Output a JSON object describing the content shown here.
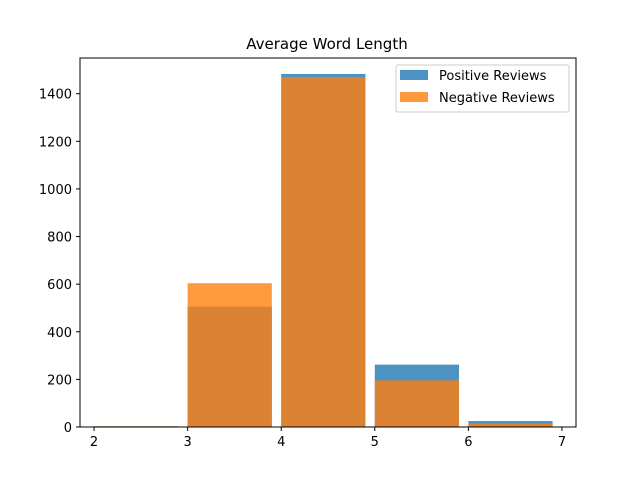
{
  "chart_data": {
    "type": "bar",
    "title": "Average Word Length",
    "xlabel": "",
    "ylabel": "",
    "xlim": [
      1.85,
      7.15
    ],
    "ylim": [
      0,
      1550
    ],
    "xticks": [
      2,
      3,
      4,
      5,
      6,
      7
    ],
    "yticks": [
      0,
      200,
      400,
      600,
      800,
      1000,
      1200,
      1400
    ],
    "bins": [
      [
        2,
        3
      ],
      [
        3,
        4
      ],
      [
        4,
        5
      ],
      [
        5,
        6
      ],
      [
        6,
        7
      ]
    ],
    "bar_width_fraction": 0.9,
    "legend_placement": "top-right",
    "grid": false,
    "series": [
      {
        "name": "Positive Reviews",
        "color": "#1f77b4",
        "alpha": 0.8,
        "values": [
          3,
          505,
          1483,
          262,
          25
        ]
      },
      {
        "name": "Negative Reviews",
        "color": "#ff7f0e",
        "alpha": 0.8,
        "values": [
          3,
          604,
          1470,
          196,
          15
        ]
      }
    ]
  }
}
